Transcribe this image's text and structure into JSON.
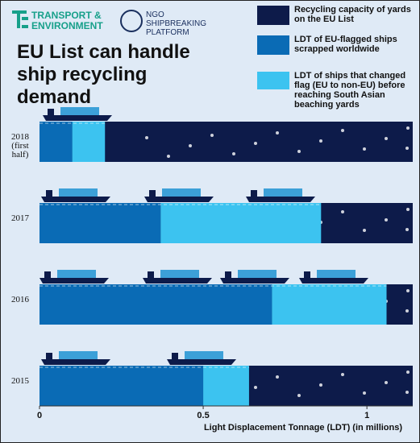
{
  "logos": [
    "TRANSPORT & ENVIRONMENT",
    "NGO SHIPBREAKING PLATFORM"
  ],
  "chart_data": {
    "type": "bar",
    "orientation": "horizontal",
    "title": "EU List can handle ship recycling demand",
    "x_label": "Light Displacement Tonnage (LDT) (in millions)",
    "categories": [
      "2018\n(first half)",
      "2017",
      "2016",
      "2015"
    ],
    "series": [
      {
        "name": "LDT of EU-flagged ships scrapped worldwide",
        "color": "#0a6bb5",
        "values": [
          0.1,
          0.37,
          0.71,
          0.5
        ]
      },
      {
        "name": "LDT of ships that changed flag (EU to non-EU) before reaching South Asian beaching yards",
        "color": "#3cc3f0",
        "values": [
          0.1,
          0.49,
          0.35,
          0.14
        ]
      },
      {
        "name": "Recycling capacity of yards on the EU List",
        "color": "#0d1b4a",
        "values": [
          1.14,
          1.14,
          1.14,
          1.14
        ]
      }
    ],
    "xlim": [
      0,
      1.14
    ],
    "xticks": [
      0,
      0.5,
      1
    ]
  }
}
